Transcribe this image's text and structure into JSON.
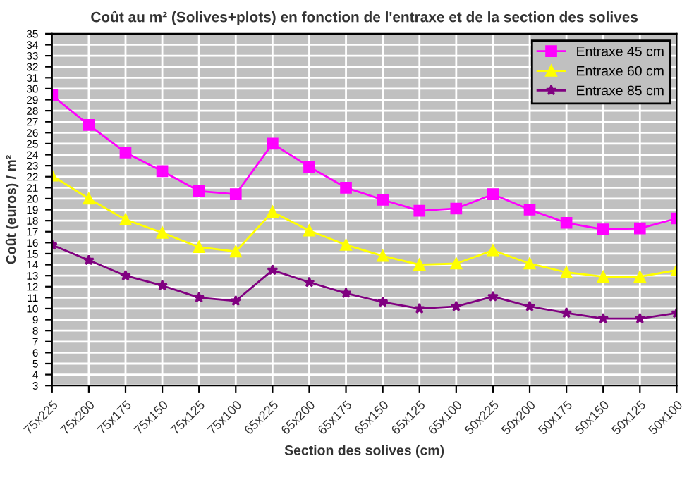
{
  "chart_data": {
    "type": "line",
    "title": "Coût au m² (Solives+plots) en fonction de l'entraxe et de la section des solives",
    "xlabel": "Section des solives (cm)",
    "ylabel": "Coût (euros) / m²",
    "categories": [
      "75x225",
      "75x200",
      "75x175",
      "75x150",
      "75x125",
      "75x100",
      "65x225",
      "65x200",
      "65x175",
      "65x150",
      "65x125",
      "65x100",
      "50x225",
      "50x200",
      "50x175",
      "50x150",
      "50x125",
      "50x100"
    ],
    "series": [
      {
        "name": "Entraxe 45 cm",
        "color": "#ff00ff",
        "marker": "square",
        "values": [
          29.4,
          26.7,
          24.2,
          22.5,
          20.7,
          20.4,
          25.0,
          22.9,
          21.0,
          19.9,
          18.9,
          19.1,
          20.4,
          19.0,
          17.8,
          17.2,
          17.3,
          18.2
        ]
      },
      {
        "name": "Entraxe 60 cm",
        "color": "#ffff00",
        "marker": "triangle",
        "values": [
          22.1,
          20.0,
          18.1,
          16.9,
          15.6,
          15.2,
          18.8,
          17.1,
          15.8,
          14.8,
          14.0,
          14.1,
          15.3,
          14.1,
          13.3,
          12.9,
          12.9,
          13.5
        ]
      },
      {
        "name": "Entraxe 85 cm",
        "color": "#800080",
        "marker": "star",
        "values": [
          15.8,
          14.4,
          13.0,
          12.1,
          11.0,
          10.7,
          13.5,
          12.4,
          11.4,
          10.6,
          10.0,
          10.2,
          11.1,
          10.2,
          9.6,
          9.1,
          9.1,
          9.6
        ]
      }
    ],
    "ylim": [
      3,
      35
    ],
    "yticks": [
      3,
      4,
      5,
      6,
      7,
      8,
      9,
      10,
      11,
      12,
      13,
      14,
      15,
      16,
      17,
      18,
      19,
      20,
      21,
      22,
      23,
      24,
      25,
      26,
      27,
      28,
      29,
      30,
      31,
      32,
      33,
      34,
      35
    ],
    "grid": true,
    "legend": "top right",
    "line_style": "solid"
  }
}
